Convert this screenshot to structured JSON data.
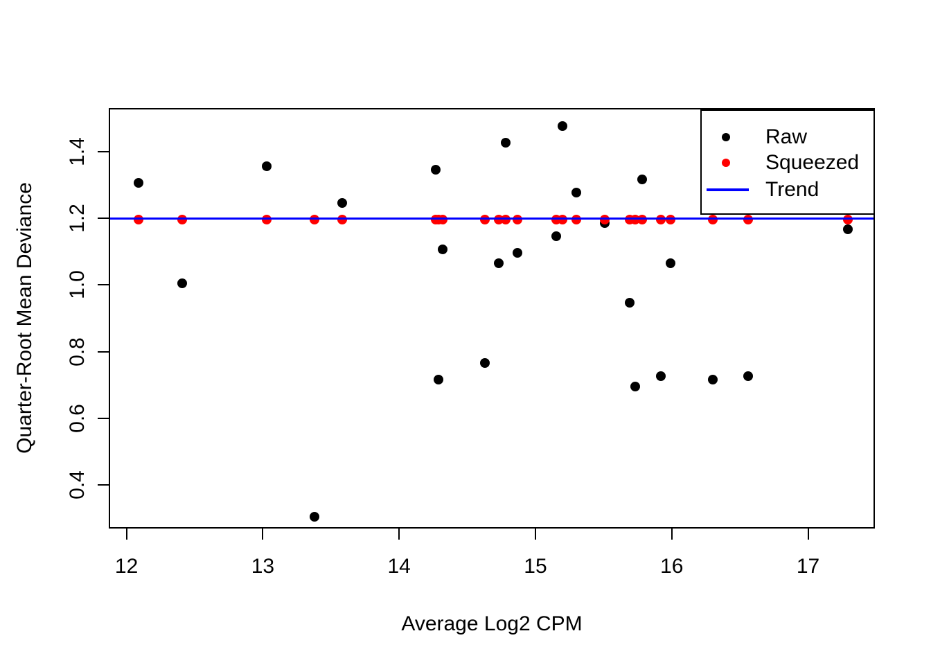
{
  "chart_data": {
    "type": "scatter",
    "title": "",
    "xlabel": "Average Log2 CPM",
    "ylabel": "Quarter-Root Mean Deviance",
    "xlim": [
      11.87,
      17.49
    ],
    "ylim": [
      0.27,
      1.53
    ],
    "grid": false,
    "xticks": [
      {
        "value": 12,
        "label": "12"
      },
      {
        "value": 13,
        "label": "13"
      },
      {
        "value": 14,
        "label": "14"
      },
      {
        "value": 15,
        "label": "15"
      },
      {
        "value": 16,
        "label": "16"
      },
      {
        "value": 17,
        "label": "17"
      }
    ],
    "yticks": [
      {
        "value": 0.4,
        "label": "0.4"
      },
      {
        "value": 0.6,
        "label": "0.6"
      },
      {
        "value": 0.8,
        "label": "0.8"
      },
      {
        "value": 1.0,
        "label": "1.0"
      },
      {
        "value": 1.2,
        "label": "1.2"
      },
      {
        "value": 1.4,
        "label": "1.4"
      }
    ],
    "legend": {
      "position": "top-right",
      "entries": [
        {
          "label": "Raw",
          "marker": "point",
          "color": "#000000"
        },
        {
          "label": "Squeezed",
          "marker": "point",
          "color": "#FF0000"
        },
        {
          "label": "Trend",
          "marker": "line",
          "color": "#0000FF"
        }
      ]
    },
    "series": [
      {
        "name": "Raw",
        "type": "points",
        "color": "#000000",
        "x": [
          12.08,
          12.4,
          13.02,
          13.37,
          13.57,
          14.26,
          14.28,
          14.31,
          14.62,
          14.72,
          14.77,
          14.86,
          15.14,
          15.19,
          15.29,
          15.5,
          15.68,
          15.72,
          15.77,
          15.91,
          15.98,
          16.29,
          16.55,
          17.28
        ],
        "y": [
          1.31,
          1.01,
          1.36,
          0.31,
          1.25,
          1.35,
          0.72,
          1.11,
          0.77,
          1.07,
          1.43,
          1.1,
          1.15,
          1.48,
          1.28,
          1.19,
          0.95,
          0.7,
          1.32,
          0.73,
          1.07,
          0.72,
          0.73,
          1.17
        ]
      },
      {
        "name": "Squeezed",
        "type": "points",
        "color": "#FF0000",
        "x": [
          12.08,
          12.4,
          13.02,
          13.37,
          13.57,
          14.26,
          14.28,
          14.31,
          14.62,
          14.72,
          14.77,
          14.86,
          15.14,
          15.19,
          15.29,
          15.5,
          15.68,
          15.72,
          15.77,
          15.91,
          15.98,
          16.29,
          16.55,
          17.28
        ],
        "y": [
          1.2,
          1.2,
          1.2,
          1.2,
          1.2,
          1.2,
          1.2,
          1.2,
          1.2,
          1.2,
          1.2,
          1.2,
          1.2,
          1.2,
          1.2,
          1.2,
          1.2,
          1.2,
          1.2,
          1.2,
          1.2,
          1.2,
          1.2,
          1.2
        ]
      },
      {
        "name": "Trend",
        "type": "hline",
        "color": "#0000FF",
        "value": 1.203
      }
    ]
  }
}
